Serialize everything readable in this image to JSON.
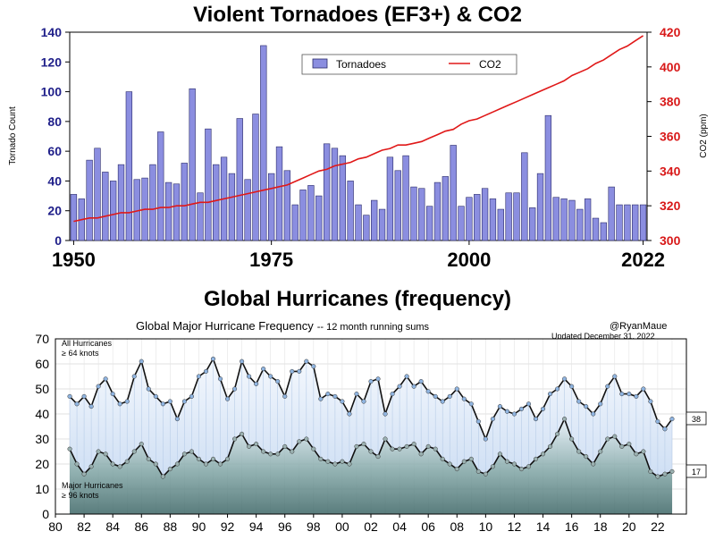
{
  "chart_data": [
    {
      "type": "bar",
      "title": "Violent Tornadoes (EF3+)  & CO2",
      "ylabel": "Tornado Count",
      "y2label": "CO2 (ppm)",
      "ylim": [
        0,
        140
      ],
      "y2lim": [
        300,
        420
      ],
      "yticks": [
        "0",
        "20",
        "40",
        "60",
        "80",
        "100",
        "120",
        "140"
      ],
      "y2ticks": [
        "300",
        "320",
        "340",
        "360",
        "380",
        "400",
        "420"
      ],
      "xtick_labels": [
        "1950",
        "1975",
        "2000",
        "2022"
      ],
      "xtick_years": [
        1950,
        1975,
        2000,
        2022
      ],
      "legend": {
        "position": "top-right",
        "tornadoes": "Tornadoes",
        "co2": "CO2"
      },
      "colors": {
        "bars": "#8b8ee0",
        "bar_outline": "#2a2a6a",
        "co2": "#e01818",
        "left_axis": "#20208a",
        "right_axis": "#d81818"
      },
      "years": [
        1950,
        1951,
        1952,
        1953,
        1954,
        1955,
        1956,
        1957,
        1958,
        1959,
        1960,
        1961,
        1962,
        1963,
        1964,
        1965,
        1966,
        1967,
        1968,
        1969,
        1970,
        1971,
        1972,
        1973,
        1974,
        1975,
        1976,
        1977,
        1978,
        1979,
        1980,
        1981,
        1982,
        1983,
        1984,
        1985,
        1986,
        1987,
        1988,
        1989,
        1990,
        1991,
        1992,
        1993,
        1994,
        1995,
        1996,
        1997,
        1998,
        1999,
        2000,
        2001,
        2002,
        2003,
        2004,
        2005,
        2006,
        2007,
        2008,
        2009,
        2010,
        2011,
        2012,
        2013,
        2014,
        2015,
        2016,
        2017,
        2018,
        2019,
        2020,
        2021,
        2022
      ],
      "tornadoes": [
        31,
        28,
        54,
        62,
        46,
        40,
        51,
        100,
        41,
        42,
        51,
        73,
        39,
        38,
        52,
        102,
        32,
        75,
        51,
        56,
        45,
        82,
        41,
        85,
        131,
        45,
        63,
        47,
        24,
        34,
        37,
        30,
        65,
        62,
        57,
        40,
        24,
        17,
        27,
        21,
        56,
        47,
        57,
        36,
        35,
        23,
        39,
        43,
        64,
        23,
        29,
        31,
        35,
        28,
        21,
        32,
        32,
        59,
        22,
        45,
        84,
        29,
        28,
        27,
        21,
        28,
        15,
        12,
        36,
        24,
        24,
        24,
        24
      ],
      "co2": [
        311,
        312,
        313,
        313,
        314,
        315,
        316,
        316,
        317,
        318,
        318,
        319,
        319,
        320,
        320,
        321,
        322,
        322,
        323,
        324,
        325,
        326,
        327,
        328,
        329,
        330,
        331,
        332,
        334,
        336,
        338,
        340,
        341,
        343,
        344,
        345,
        347,
        348,
        350,
        352,
        353,
        355,
        355,
        356,
        357,
        359,
        361,
        363,
        364,
        367,
        369,
        370,
        372,
        374,
        376,
        378,
        380,
        382,
        384,
        386,
        388,
        390,
        392,
        395,
        397,
        399,
        402,
        404,
        407,
        410,
        412,
        415,
        418
      ]
    },
    {
      "type": "area",
      "heading": "Global Hurricanes (frequency)",
      "title": "Global Major Hurricane Frequency",
      "subtitle": "-- 12 month running sums",
      "credit": "@RyanMaue",
      "updated": "Updated December 31, 2022",
      "ylim": [
        0,
        70
      ],
      "yticks": [
        "0",
        "10",
        "20",
        "30",
        "40",
        "50",
        "60",
        "70"
      ],
      "xlim": [
        1980,
        2024
      ],
      "xtick_labels": [
        "80",
        "82",
        "84",
        "86",
        "88",
        "90",
        "92",
        "94",
        "96",
        "98",
        "00",
        "02",
        "04",
        "06",
        "08",
        "10",
        "12",
        "14",
        "16",
        "18",
        "20",
        "22"
      ],
      "all_label_line1": "All Hurricanes",
      "all_label_line2": "≥ 64 knots",
      "major_label_line1": "Major Hurricanes",
      "major_label_line2": "≥ 96 knots",
      "end_all": "38",
      "end_major": "17",
      "colors": {
        "all_marker": "#8fb4e0",
        "major_marker": "#9ab0b0",
        "line": "#111111",
        "fill_all": "#d8e6f8",
        "fill_major": "#6f9a9a"
      },
      "series": [
        {
          "name": "All Hurricanes",
          "points": [
            [
              1981,
              47
            ],
            [
              1981.5,
              44
            ],
            [
              1982,
              47
            ],
            [
              1982.5,
              43
            ],
            [
              1983,
              51
            ],
            [
              1983.5,
              54
            ],
            [
              1984,
              48
            ],
            [
              1984.5,
              44
            ],
            [
              1985,
              45
            ],
            [
              1985.5,
              55
            ],
            [
              1986,
              61
            ],
            [
              1986.5,
              50
            ],
            [
              1987,
              47
            ],
            [
              1987.5,
              44
            ],
            [
              1988,
              45
            ],
            [
              1988.5,
              38
            ],
            [
              1989,
              45
            ],
            [
              1989.5,
              47
            ],
            [
              1990,
              55
            ],
            [
              1990.5,
              57
            ],
            [
              1991,
              62
            ],
            [
              1991.5,
              54
            ],
            [
              1992,
              46
            ],
            [
              1992.5,
              50
            ],
            [
              1993,
              61
            ],
            [
              1993.5,
              55
            ],
            [
              1994,
              52
            ],
            [
              1994.5,
              58
            ],
            [
              1995,
              55
            ],
            [
              1995.5,
              53
            ],
            [
              1996,
              47
            ],
            [
              1996.5,
              57
            ],
            [
              1997,
              57
            ],
            [
              1997.5,
              61
            ],
            [
              1998,
              59
            ],
            [
              1998.5,
              46
            ],
            [
              1999,
              48
            ],
            [
              1999.5,
              47
            ],
            [
              2000,
              45
            ],
            [
              2000.5,
              40
            ],
            [
              2001,
              48
            ],
            [
              2001.5,
              45
            ],
            [
              2002,
              53
            ],
            [
              2002.5,
              54
            ],
            [
              2003,
              40
            ],
            [
              2003.5,
              48
            ],
            [
              2004,
              51
            ],
            [
              2004.5,
              55
            ],
            [
              2005,
              51
            ],
            [
              2005.5,
              53
            ],
            [
              2006,
              49
            ],
            [
              2006.5,
              47
            ],
            [
              2007,
              45
            ],
            [
              2007.5,
              47
            ],
            [
              2008,
              50
            ],
            [
              2008.5,
              46
            ],
            [
              2009,
              44
            ],
            [
              2009.5,
              37
            ],
            [
              2010,
              30
            ],
            [
              2010.5,
              38
            ],
            [
              2011,
              43
            ],
            [
              2011.5,
              41
            ],
            [
              2012,
              40
            ],
            [
              2012.5,
              42
            ],
            [
              2013,
              44
            ],
            [
              2013.5,
              38
            ],
            [
              2014,
              42
            ],
            [
              2014.5,
              48
            ],
            [
              2015,
              50
            ],
            [
              2015.5,
              54
            ],
            [
              2016,
              51
            ],
            [
              2016.5,
              45
            ],
            [
              2017,
              43
            ],
            [
              2017.5,
              40
            ],
            [
              2018,
              44
            ],
            [
              2018.5,
              51
            ],
            [
              2019,
              55
            ],
            [
              2019.5,
              48
            ],
            [
              2020,
              48
            ],
            [
              2020.5,
              47
            ],
            [
              2021,
              50
            ],
            [
              2021.5,
              45
            ],
            [
              2022,
              37
            ],
            [
              2022.5,
              34
            ],
            [
              2023,
              38
            ]
          ]
        },
        {
          "name": "Major Hurricanes",
          "points": [
            [
              1981,
              26
            ],
            [
              1981.5,
              20
            ],
            [
              1982,
              16
            ],
            [
              1982.5,
              19
            ],
            [
              1983,
              25
            ],
            [
              1983.5,
              24
            ],
            [
              1984,
              20
            ],
            [
              1984.5,
              19
            ],
            [
              1985,
              21
            ],
            [
              1985.5,
              25
            ],
            [
              1986,
              28
            ],
            [
              1986.5,
              22
            ],
            [
              1987,
              20
            ],
            [
              1987.5,
              15
            ],
            [
              1988,
              18
            ],
            [
              1988.5,
              20
            ],
            [
              1989,
              24
            ],
            [
              1989.5,
              25
            ],
            [
              1990,
              22
            ],
            [
              1990.5,
              20
            ],
            [
              1991,
              22
            ],
            [
              1991.5,
              20
            ],
            [
              1992,
              22
            ],
            [
              1992.5,
              30
            ],
            [
              1993,
              32
            ],
            [
              1993.5,
              27
            ],
            [
              1994,
              28
            ],
            [
              1994.5,
              25
            ],
            [
              1995,
              24
            ],
            [
              1995.5,
              24
            ],
            [
              1996,
              27
            ],
            [
              1996.5,
              25
            ],
            [
              1997,
              29
            ],
            [
              1997.5,
              30
            ],
            [
              1998,
              26
            ],
            [
              1998.5,
              22
            ],
            [
              1999,
              21
            ],
            [
              1999.5,
              20
            ],
            [
              2000,
              21
            ],
            [
              2000.5,
              20
            ],
            [
              2001,
              27
            ],
            [
              2001.5,
              28
            ],
            [
              2002,
              25
            ],
            [
              2002.5,
              23
            ],
            [
              2003,
              30
            ],
            [
              2003.5,
              26
            ],
            [
              2004,
              26
            ],
            [
              2004.5,
              27
            ],
            [
              2005,
              28
            ],
            [
              2005.5,
              24
            ],
            [
              2006,
              27
            ],
            [
              2006.5,
              26
            ],
            [
              2007,
              22
            ],
            [
              2007.5,
              20
            ],
            [
              2008,
              18
            ],
            [
              2008.5,
              21
            ],
            [
              2009,
              22
            ],
            [
              2009.5,
              17
            ],
            [
              2010,
              16
            ],
            [
              2010.5,
              19
            ],
            [
              2011,
              24
            ],
            [
              2011.5,
              21
            ],
            [
              2012,
              20
            ],
            [
              2012.5,
              18
            ],
            [
              2013,
              19
            ],
            [
              2013.5,
              22
            ],
            [
              2014,
              24
            ],
            [
              2014.5,
              27
            ],
            [
              2015,
              32
            ],
            [
              2015.5,
              38
            ],
            [
              2016,
              30
            ],
            [
              2016.5,
              25
            ],
            [
              2017,
              23
            ],
            [
              2017.5,
              20
            ],
            [
              2018,
              25
            ],
            [
              2018.5,
              30
            ],
            [
              2019,
              31
            ],
            [
              2019.5,
              27
            ],
            [
              2020,
              28
            ],
            [
              2020.5,
              24
            ],
            [
              2021,
              25
            ],
            [
              2021.5,
              17
            ],
            [
              2022,
              15
            ],
            [
              2022.5,
              16
            ],
            [
              2023,
              17
            ]
          ]
        }
      ]
    }
  ]
}
